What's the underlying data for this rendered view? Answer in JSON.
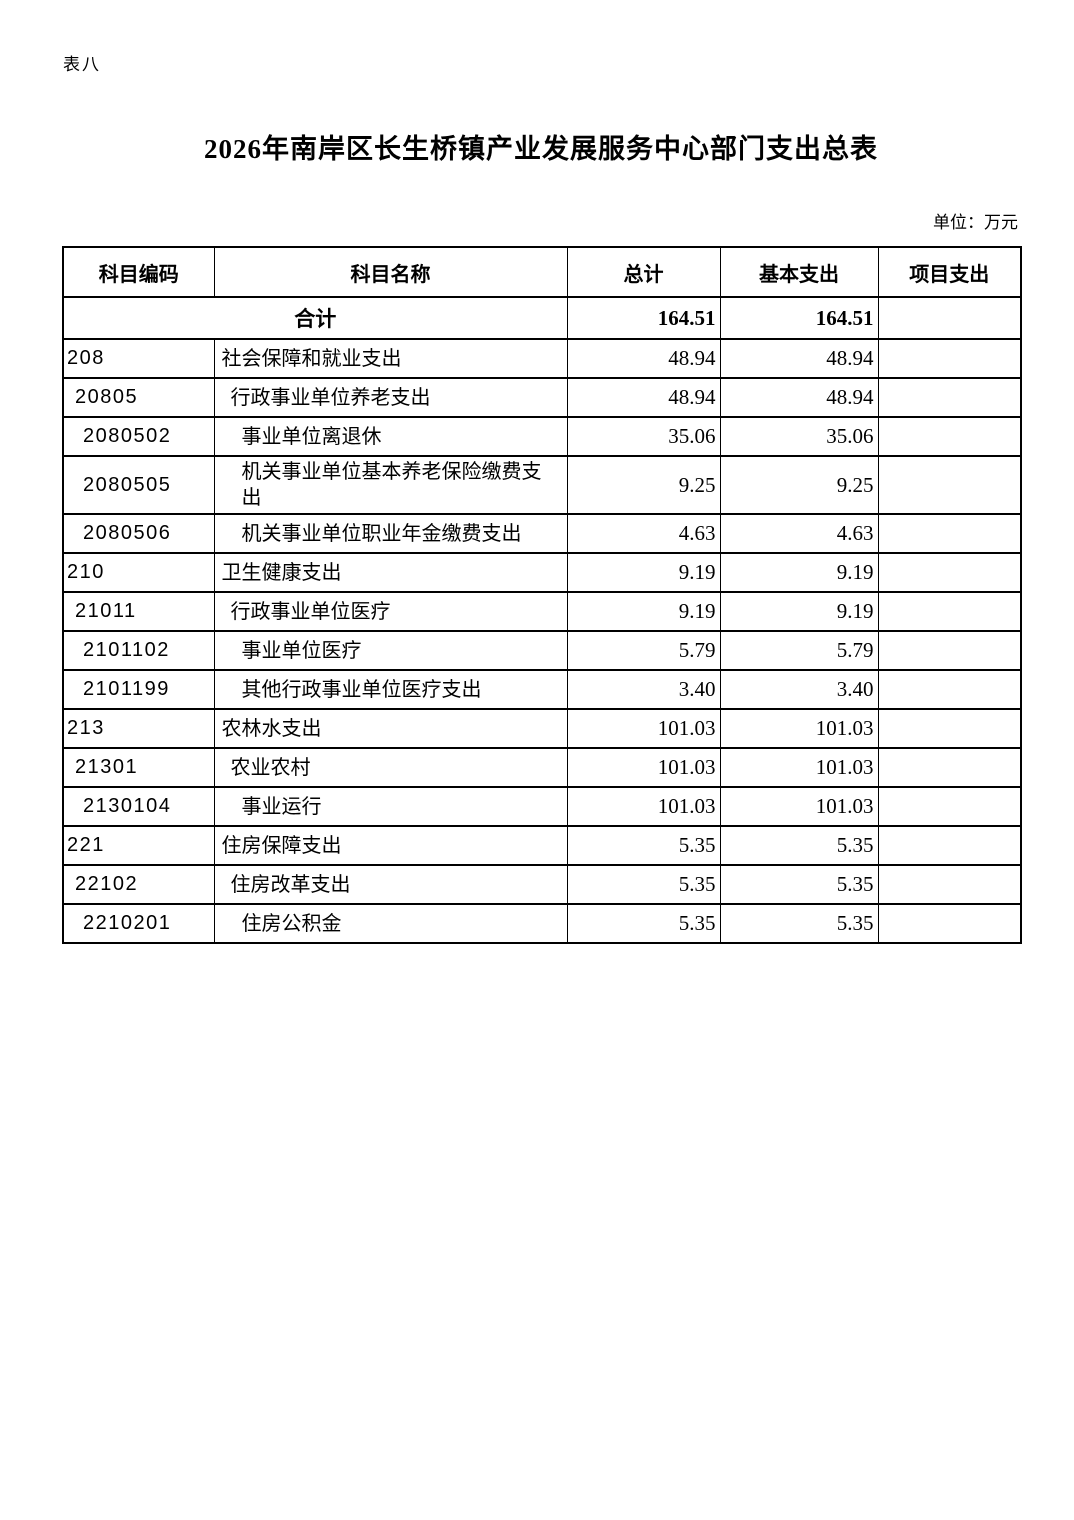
{
  "page": {
    "corner_label": "表八",
    "title": "2026年南岸区长生桥镇产业发展服务中心部门支出总表",
    "unit_note": "单位：万元"
  },
  "colors": {
    "background": "#ffffff",
    "text": "#000000",
    "table_border": "#000000"
  },
  "table": {
    "columns": [
      "科目编码",
      "科目名称",
      "总计",
      "基本支出",
      "项目支出"
    ],
    "total_row": {
      "label": "合计",
      "total": "164.51",
      "basic": "164.51",
      "project": ""
    },
    "rows": [
      {
        "code": "208",
        "name": "社会保障和就业支出",
        "total": "48.94",
        "basic": "48.94",
        "project": "",
        "level": 0
      },
      {
        "code": "20805",
        "name": "行政事业单位养老支出",
        "total": "48.94",
        "basic": "48.94",
        "project": "",
        "level": 1
      },
      {
        "code": "2080502",
        "name": "事业单位离退休",
        "total": "35.06",
        "basic": "35.06",
        "project": "",
        "level": 2
      },
      {
        "code": "2080505",
        "name": "机关事业单位基本养老保险缴费支出",
        "total": "9.25",
        "basic": "9.25",
        "project": "",
        "level": 2
      },
      {
        "code": "2080506",
        "name": "机关事业单位职业年金缴费支出",
        "total": "4.63",
        "basic": "4.63",
        "project": "",
        "level": 2
      },
      {
        "code": "210",
        "name": "卫生健康支出",
        "total": "9.19",
        "basic": "9.19",
        "project": "",
        "level": 0
      },
      {
        "code": "21011",
        "name": "行政事业单位医疗",
        "total": "9.19",
        "basic": "9.19",
        "project": "",
        "level": 1
      },
      {
        "code": "2101102",
        "name": "事业单位医疗",
        "total": "5.79",
        "basic": "5.79",
        "project": "",
        "level": 2
      },
      {
        "code": "2101199",
        "name": "其他行政事业单位医疗支出",
        "total": "3.40",
        "basic": "3.40",
        "project": "",
        "level": 2
      },
      {
        "code": "213",
        "name": "农林水支出",
        "total": "101.03",
        "basic": "101.03",
        "project": "",
        "level": 0
      },
      {
        "code": "21301",
        "name": "农业农村",
        "total": "101.03",
        "basic": "101.03",
        "project": "",
        "level": 1
      },
      {
        "code": "2130104",
        "name": "事业运行",
        "total": "101.03",
        "basic": "101.03",
        "project": "",
        "level": 2
      },
      {
        "code": "221",
        "name": "住房保障支出",
        "total": "5.35",
        "basic": "5.35",
        "project": "",
        "level": 0
      },
      {
        "code": "22102",
        "name": "住房改革支出",
        "total": "5.35",
        "basic": "5.35",
        "project": "",
        "level": 1
      },
      {
        "code": "2210201",
        "name": "住房公积金",
        "total": "5.35",
        "basic": "5.35",
        "project": "",
        "level": 2
      }
    ]
  }
}
